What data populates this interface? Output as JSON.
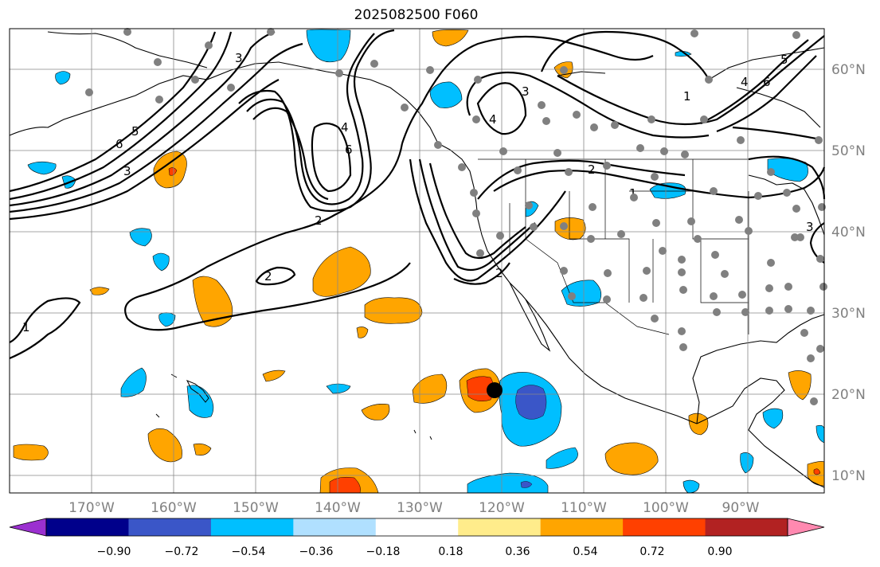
{
  "title": "2025082500 F060",
  "map": {
    "lon_labels": [
      "170°W",
      "160°W",
      "150°W",
      "140°W",
      "130°W",
      "120°W",
      "110°W",
      "100°W",
      "90°W"
    ],
    "lat_labels": [
      "60°N",
      "50°N",
      "40°N",
      "30°N",
      "20°N",
      "10°N"
    ],
    "contour_labels": [
      "1",
      "2",
      "3",
      "4",
      "5",
      "6"
    ]
  },
  "colorbar": {
    "tick_labels": [
      "−0.90",
      "−0.72",
      "−0.54",
      "−0.36",
      "−0.18",
      "0.18",
      "0.36",
      "0.54",
      "0.72",
      "0.90"
    ],
    "colors": [
      "#9b30d0",
      "#00008b",
      "#3a56c8",
      "#00bfff",
      "#b0e0ff",
      "#ffffff",
      "#ffec8b",
      "#ffa500",
      "#ff4000",
      "#b22222",
      "#ff89b0"
    ]
  }
}
